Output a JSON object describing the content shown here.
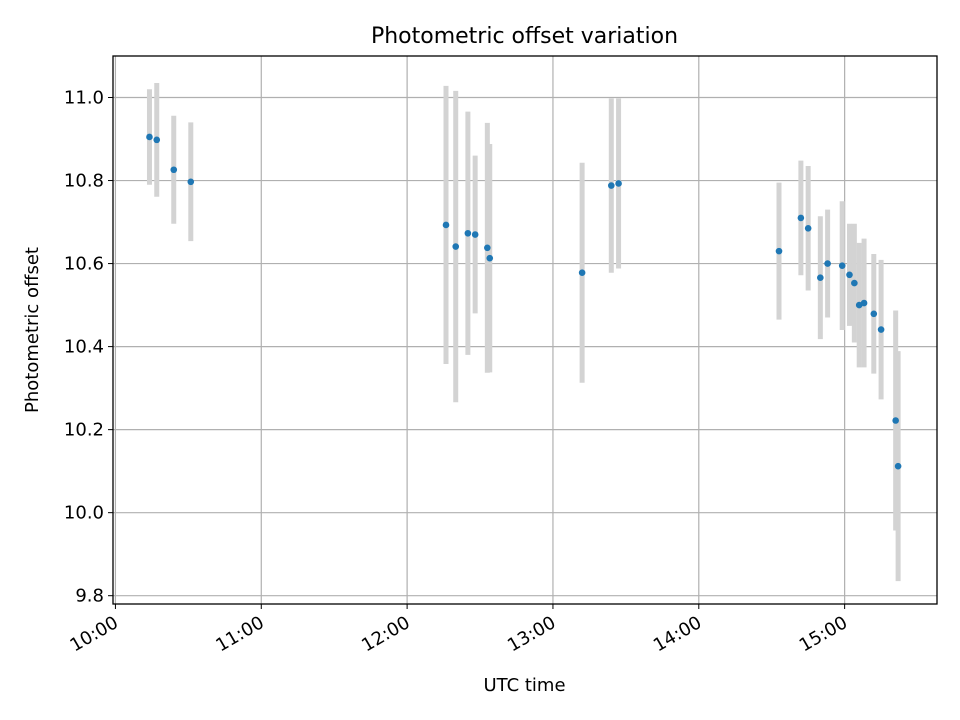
{
  "chart_data": {
    "type": "scatter",
    "title": "Photometric offset variation",
    "xlabel": "UTC time",
    "ylabel": "Photometric offset",
    "x_tick_labels": [
      "10:00",
      "11:00",
      "12:00",
      "13:00",
      "14:00",
      "15:00"
    ],
    "y_tick_labels": [
      "9.8",
      "10.0",
      "10.2",
      "10.4",
      "10.6",
      "10.8",
      "11.0"
    ],
    "y_ticks": [
      9.8,
      10.0,
      10.2,
      10.4,
      10.6,
      10.8,
      11.0
    ],
    "x_ticks": [
      "10:00",
      "11:00",
      "12:00",
      "13:00",
      "14:00",
      "15:00"
    ],
    "xlim": [
      "09:59",
      "15:38"
    ],
    "ylim": [
      9.78,
      11.1
    ],
    "grid": true,
    "colors": {
      "points": "#1f77b4",
      "error_bars": "#d3d3d3",
      "grid": "#b0b0b0"
    },
    "series": [
      {
        "points": [
          {
            "x": "10:14",
            "y": 10.905,
            "err": 0.115
          },
          {
            "x": "10:17",
            "y": 10.898,
            "err": 0.137
          },
          {
            "x": "10:24",
            "y": 10.826,
            "err": 0.13
          },
          {
            "x": "10:31",
            "y": 10.797,
            "err": 0.143
          },
          {
            "x": "12:16",
            "y": 10.693,
            "err": 0.335
          },
          {
            "x": "12:20",
            "y": 10.641,
            "err": 0.375
          },
          {
            "x": "12:25",
            "y": 10.673,
            "err": 0.293
          },
          {
            "x": "12:28",
            "y": 10.67,
            "err": 0.19
          },
          {
            "x": "12:33",
            "y": 10.638,
            "err": 0.301
          },
          {
            "x": "12:34",
            "y": 10.613,
            "err": 0.275
          },
          {
            "x": "13:12",
            "y": 10.578,
            "err": 0.265
          },
          {
            "x": "13:24",
            "y": 10.788,
            "err": 0.21
          },
          {
            "x": "13:27",
            "y": 10.793,
            "err": 0.205
          },
          {
            "x": "14:33",
            "y": 10.63,
            "err": 0.165
          },
          {
            "x": "14:42",
            "y": 10.71,
            "err": 0.138
          },
          {
            "x": "14:45",
            "y": 10.685,
            "err": 0.15
          },
          {
            "x": "14:50",
            "y": 10.566,
            "err": 0.148
          },
          {
            "x": "14:53",
            "y": 10.6,
            "err": 0.13
          },
          {
            "x": "14:59",
            "y": 10.595,
            "err": 0.155
          },
          {
            "x": "15:02",
            "y": 10.573,
            "err": 0.123
          },
          {
            "x": "15:04",
            "y": 10.553,
            "err": 0.143
          },
          {
            "x": "15:06",
            "y": 10.5,
            "err": 0.15
          },
          {
            "x": "15:08",
            "y": 10.505,
            "err": 0.155
          },
          {
            "x": "15:12",
            "y": 10.479,
            "err": 0.144
          },
          {
            "x": "15:15",
            "y": 10.441,
            "err": 0.168
          },
          {
            "x": "15:21",
            "y": 10.222,
            "err": 0.265
          },
          {
            "x": "15:22",
            "y": 10.112,
            "err": 0.277
          }
        ]
      }
    ]
  }
}
